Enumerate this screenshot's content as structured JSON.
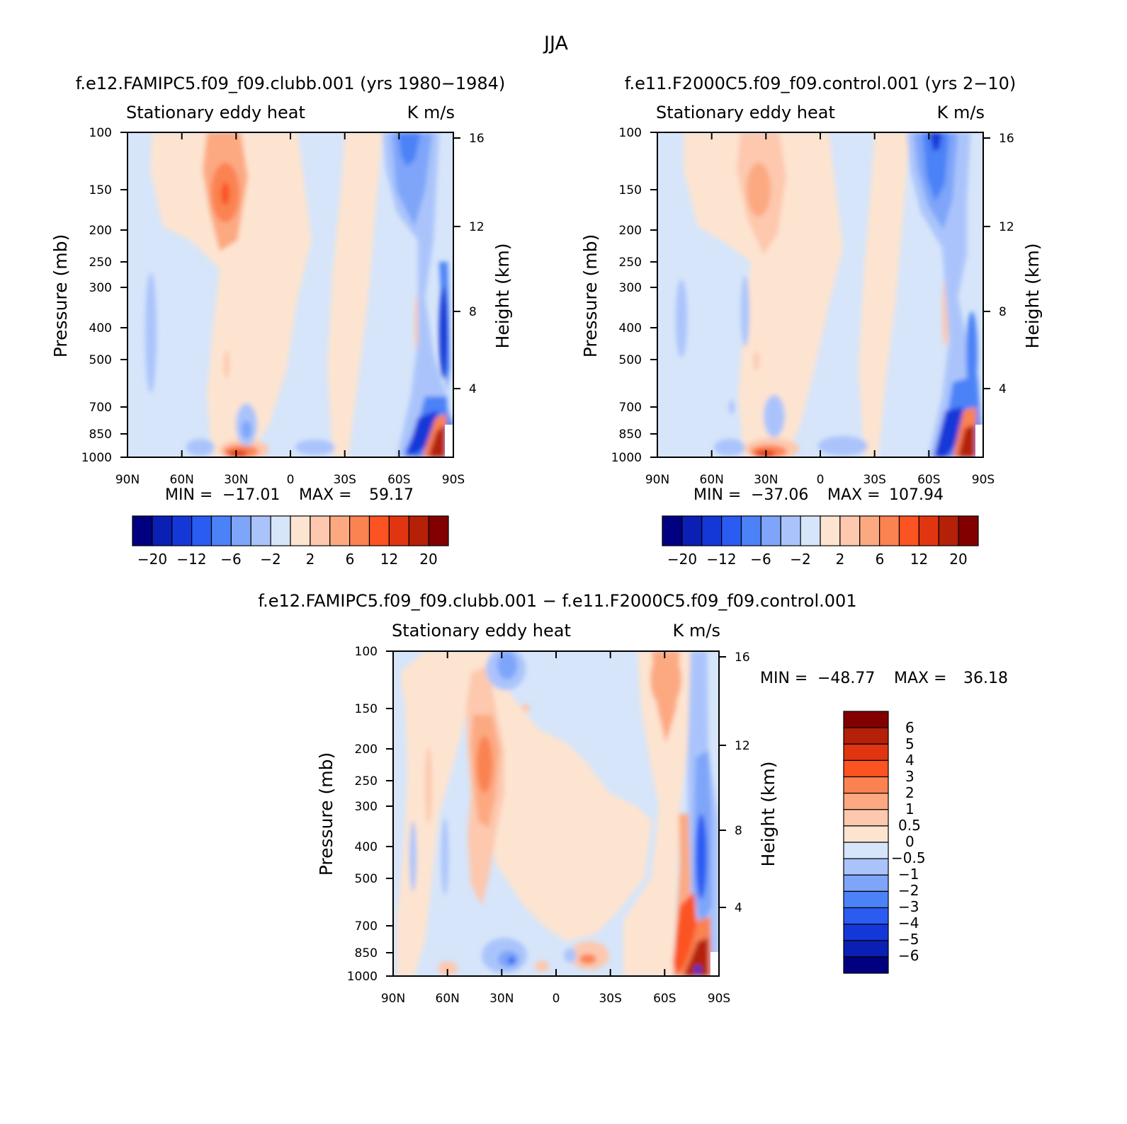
{
  "figure_title": "JJA",
  "chart_data": [
    {
      "type": "heatmap",
      "panel": "model",
      "title": "f.e12.FAMIPC5.f09_f09.clubb.001 (yrs 1980−1984)",
      "left_label": "Stationary eddy heat",
      "right_label": "K m/s",
      "xlabel": "",
      "ylabel": "Pressure (mb)",
      "y2label": "Height (km)",
      "x_ticks": [
        "90N",
        "60N",
        "30N",
        "0",
        "30S",
        "60S",
        "90S"
      ],
      "pressure_levels": [
        100,
        150,
        200,
        250,
        300,
        400,
        500,
        700,
        850,
        1000
      ],
      "height_ticks": [
        16,
        12,
        8,
        4
      ],
      "stats": {
        "min_label": "MIN =",
        "min": "−17.01",
        "max_label": "MAX =",
        "max": "59.17"
      },
      "colorbar_labels": [
        "−20",
        "−12",
        "−6",
        "−2",
        "2",
        "6",
        "12",
        "20"
      ],
      "colorbar_levels": 16
    },
    {
      "type": "heatmap",
      "panel": "control",
      "title": "f.e11.F2000C5.f09_f09.control.001 (yrs 2−10)",
      "left_label": "Stationary eddy heat",
      "right_label": "K m/s",
      "xlabel": "",
      "ylabel": "Pressure (mb)",
      "y2label": "Height (km)",
      "x_ticks": [
        "90N",
        "60N",
        "30N",
        "0",
        "30S",
        "60S",
        "90S"
      ],
      "pressure_levels": [
        100,
        150,
        200,
        250,
        300,
        400,
        500,
        700,
        850,
        1000
      ],
      "height_ticks": [
        16,
        12,
        8,
        4
      ],
      "stats": {
        "min_label": "MIN =",
        "min": "−37.06",
        "max_label": "MAX =",
        "max": "107.94"
      },
      "colorbar_labels": [
        "−20",
        "−12",
        "−6",
        "−2",
        "2",
        "6",
        "12",
        "20"
      ],
      "colorbar_levels": 16
    },
    {
      "type": "heatmap",
      "panel": "difference",
      "title": "f.e12.FAMIPC5.f09_f09.clubb.001 − f.e11.F2000C5.f09_f09.control.001",
      "left_label": "Stationary eddy heat",
      "right_label": "K m/s",
      "xlabel": "",
      "ylabel": "Pressure (mb)",
      "y2label": "Height (km)",
      "x_ticks": [
        "90N",
        "60N",
        "30N",
        "0",
        "30S",
        "60S",
        "90S"
      ],
      "pressure_levels": [
        100,
        150,
        200,
        250,
        300,
        400,
        500,
        700,
        850,
        1000
      ],
      "height_ticks": [
        16,
        12,
        8,
        4
      ],
      "stats": {
        "min_label": "MIN =",
        "min": "−48.77",
        "max_label": "MAX =",
        "max": "36.18"
      },
      "colorbar_labels": [
        "6",
        "5",
        "4",
        "3",
        "2",
        "1",
        "0.5",
        "0",
        "−0.5",
        "−1",
        "−2",
        "−3",
        "−4",
        "−5",
        "−6"
      ],
      "colorbar_levels": 16
    }
  ],
  "colors": {
    "palette": [
      "#000080",
      "#0a1fb4",
      "#1438d8",
      "#2a5cf2",
      "#4c82f7",
      "#7ea5f9",
      "#aac4fb",
      "#d6e5fa",
      "#fde4d0",
      "#fdc8ae",
      "#fca982",
      "#fb8251",
      "#fb5321",
      "#e03510",
      "#b42008",
      "#820000"
    ]
  }
}
